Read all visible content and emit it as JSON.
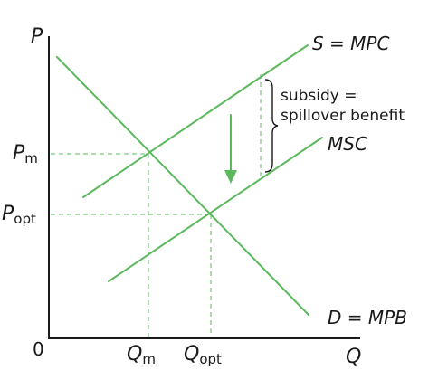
{
  "axes": {
    "y_label": "P",
    "x_label": "Q",
    "origin_label": "0"
  },
  "curves": {
    "supply_private": "S = MPC",
    "supply_social": "MSC",
    "demand": "D = MPB"
  },
  "prices": {
    "market": {
      "base": "P",
      "sub": "m"
    },
    "optimal": {
      "base": "P",
      "sub": "opt"
    }
  },
  "quantities": {
    "market": {
      "base": "Q",
      "sub": "m"
    },
    "optimal": {
      "base": "Q",
      "sub": "opt"
    }
  },
  "annotation": {
    "line1": "subsidy =",
    "line2": "spillover benefit"
  },
  "colors": {
    "curve": "#5cb85c",
    "axis": "#1a1a1a",
    "text": "#1a1a1a"
  }
}
